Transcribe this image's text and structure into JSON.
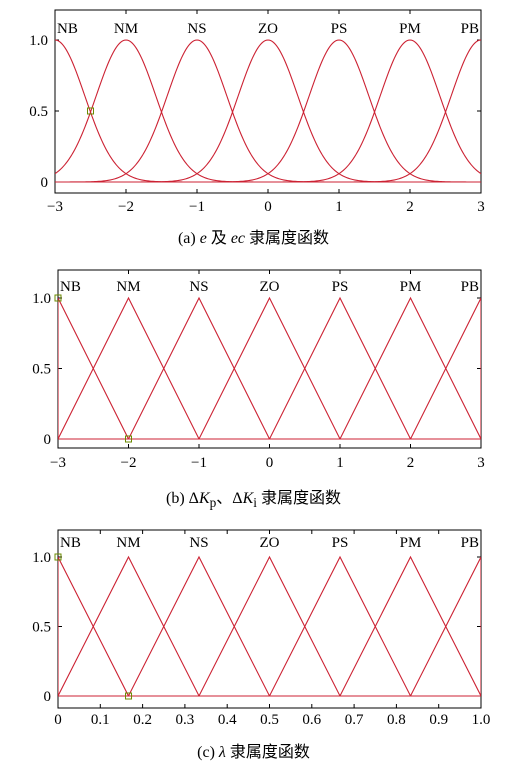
{
  "colors": {
    "curve": "#cc2233",
    "axis": "#000000",
    "marker": "#6a8a00"
  },
  "chart_data": [
    {
      "id": "a",
      "type": "line",
      "shape": "gaussian",
      "caption": {
        "prefix": "(a)",
        "parts": [
          {
            "t": "e",
            "i": true
          },
          {
            "t": " 及 ",
            "i": false
          },
          {
            "t": "ec",
            "i": true
          },
          {
            "t": " 隶属度函数",
            "i": false
          }
        ]
      },
      "xlim": [
        -3,
        3
      ],
      "ylim": [
        0,
        1
      ],
      "xticks": [
        -3,
        -2,
        -1,
        0,
        1,
        2,
        3
      ],
      "xtick_labels": [
        "−3",
        "−2",
        "−1",
        "0",
        "1",
        "2",
        "3"
      ],
      "yticks": [
        0,
        0.5,
        1
      ],
      "ytick_labels": [
        "0",
        "0.5",
        "1.0"
      ],
      "sigma": 0.42,
      "series": [
        {
          "name": "NB",
          "center": -3
        },
        {
          "name": "NM",
          "center": -2
        },
        {
          "name": "NS",
          "center": -1
        },
        {
          "name": "ZO",
          "center": 0
        },
        {
          "name": "PS",
          "center": 1
        },
        {
          "name": "PM",
          "center": 2
        },
        {
          "name": "PB",
          "center": 3
        }
      ],
      "markers": [
        {
          "x": -2.5,
          "y": 0.5
        }
      ]
    },
    {
      "id": "b",
      "type": "line",
      "shape": "triangle",
      "caption": {
        "prefix": "(b)",
        "parts": [
          {
            "t": " Δ",
            "i": false
          },
          {
            "t": "K",
            "i": true
          },
          {
            "t": "p",
            "i": false,
            "sub": true
          },
          {
            "t": "、Δ",
            "i": false
          },
          {
            "t": "K",
            "i": true
          },
          {
            "t": "i",
            "i": false,
            "sub": true
          },
          {
            "t": " 隶属度函数",
            "i": false
          }
        ]
      },
      "xlim": [
        -3,
        3
      ],
      "ylim": [
        0,
        1
      ],
      "xticks": [
        -3,
        -2,
        -1,
        0,
        1,
        2,
        3
      ],
      "xtick_labels": [
        "−3",
        "−2",
        "−1",
        "0",
        "1",
        "2",
        "3"
      ],
      "yticks": [
        0,
        0.5,
        1
      ],
      "ytick_labels": [
        "0",
        "0.5",
        "1.0"
      ],
      "half_width": 1,
      "series": [
        {
          "name": "NB",
          "center": -3
        },
        {
          "name": "NM",
          "center": -2
        },
        {
          "name": "NS",
          "center": -1
        },
        {
          "name": "ZO",
          "center": 0
        },
        {
          "name": "PS",
          "center": 1
        },
        {
          "name": "PM",
          "center": 2
        },
        {
          "name": "PB",
          "center": 3
        }
      ],
      "markers": [
        {
          "x": -3,
          "y": 1
        },
        {
          "x": -2,
          "y": 0
        }
      ]
    },
    {
      "id": "c",
      "type": "line",
      "shape": "triangle",
      "caption": {
        "prefix": "(c)",
        "parts": [
          {
            "t": " λ",
            "i": true
          },
          {
            "t": " 隶属度函数",
            "i": false
          }
        ]
      },
      "xlim": [
        0,
        1
      ],
      "ylim": [
        0,
        1
      ],
      "xticks": [
        0,
        0.1,
        0.2,
        0.3,
        0.4,
        0.5,
        0.6,
        0.7,
        0.8,
        0.9,
        1.0
      ],
      "xtick_labels": [
        "0",
        "0.1",
        "0.2",
        "0.3",
        "0.4",
        "0.5",
        "0.6",
        "0.7",
        "0.8",
        "0.9",
        "1.0"
      ],
      "yticks": [
        0,
        0.5,
        1
      ],
      "ytick_labels": [
        "0",
        "0.5",
        "1.0"
      ],
      "half_width": 0.1667,
      "series": [
        {
          "name": "NB",
          "center": 0
        },
        {
          "name": "NM",
          "center": 0.1667
        },
        {
          "name": "NS",
          "center": 0.3333
        },
        {
          "name": "ZO",
          "center": 0.5
        },
        {
          "name": "PS",
          "center": 0.6667
        },
        {
          "name": "PM",
          "center": 0.8333
        },
        {
          "name": "PB",
          "center": 1.0
        }
      ],
      "markers": [
        {
          "x": 0,
          "y": 1
        },
        {
          "x": 0.1667,
          "y": 0
        }
      ]
    }
  ]
}
